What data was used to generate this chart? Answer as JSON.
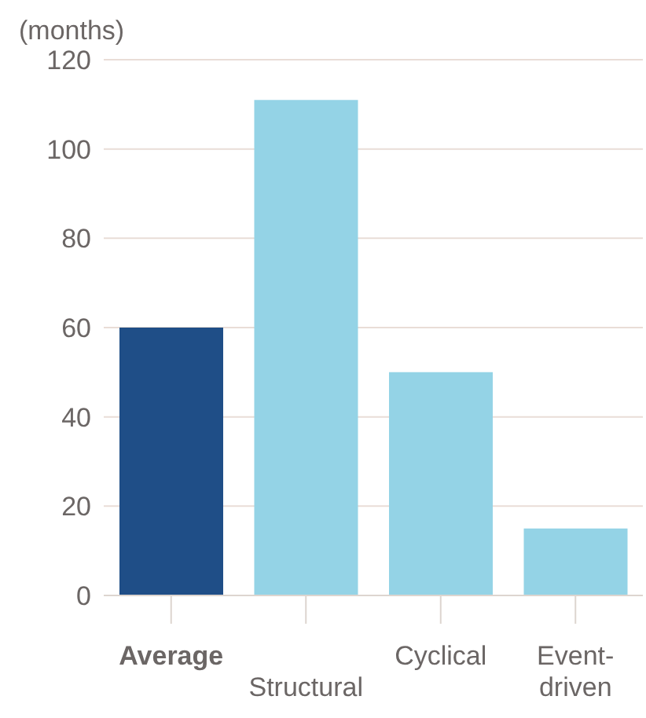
{
  "chart_data": {
    "type": "bar",
    "ylabel": "(months)",
    "categories": [
      "Average",
      "Structural",
      "Cyclical",
      "Event-driven"
    ],
    "values": [
      60,
      111,
      50,
      15
    ],
    "colors": [
      "#1f4e87",
      "#94d3e6",
      "#94d3e6",
      "#94d3e6"
    ],
    "ylim": [
      0,
      120
    ],
    "yticks": [
      0,
      20,
      40,
      60,
      80,
      100,
      120
    ],
    "grid": "y"
  }
}
